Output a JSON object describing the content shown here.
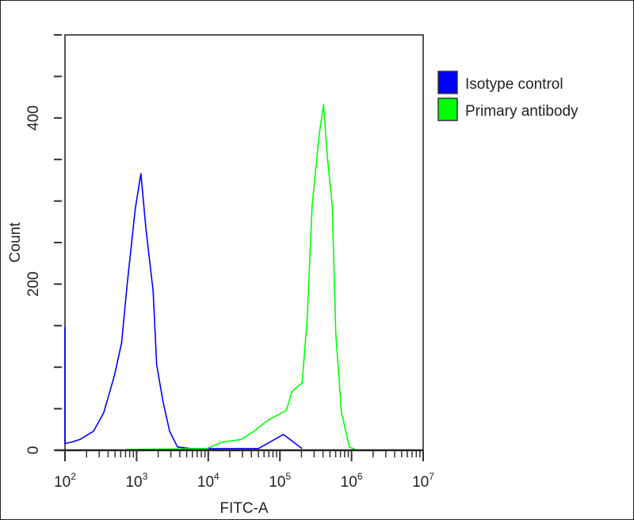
{
  "chart_data": {
    "type": "line",
    "xlabel": "FITC-A",
    "ylabel": "Count",
    "xscale": "log",
    "xlim": [
      100,
      10000000
    ],
    "ylim": [
      0,
      500
    ],
    "x_ticks": [
      {
        "base": "10",
        "exp": "2"
      },
      {
        "base": "10",
        "exp": "3"
      },
      {
        "base": "10",
        "exp": "4"
      },
      {
        "base": "10",
        "exp": "5"
      },
      {
        "base": "10",
        "exp": "6"
      },
      {
        "base": "10",
        "exp": "7"
      }
    ],
    "y_ticks": [
      "0",
      "200",
      "400"
    ],
    "y_tick_values": [
      0,
      200,
      400
    ],
    "grid": false,
    "legend_placement": "right-outside-top",
    "series": [
      {
        "name": "Isotype control",
        "color": "#0000ff",
        "x": [
          100,
          100,
          126,
          162,
          251,
          347,
          490,
          617,
          741,
          955,
          1148,
          1349,
          1698,
          1905,
          2344,
          2884,
          3715,
          5754,
          50000,
          112000,
          204000
        ],
        "y": [
          148,
          8,
          10,
          13,
          23,
          45,
          90,
          129,
          201,
          290,
          333,
          266,
          192,
          103,
          58,
          23,
          4,
          2,
          2,
          19,
          2
        ]
      },
      {
        "name": "Primary antibody",
        "color": "#00ff00",
        "x": [
          700,
          9550,
          15850,
          28840,
          43650,
          67600,
          123000,
          148000,
          204000,
          240000,
          282000,
          355000,
          407000,
          457000,
          537000,
          603000,
          724000,
          933000,
          1122000
        ],
        "y": [
          1,
          2,
          10,
          13,
          23,
          36,
          48,
          71,
          81,
          157,
          295,
          381,
          416,
          355,
          295,
          141,
          45,
          4,
          1
        ]
      }
    ]
  }
}
